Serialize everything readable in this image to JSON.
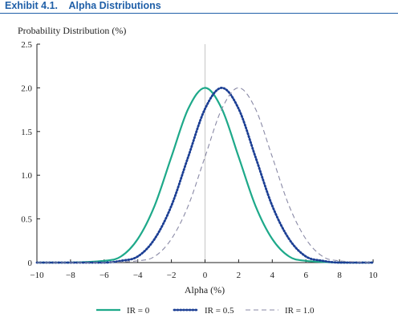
{
  "header": {
    "exhibit_label": "Exhibit 4.1.",
    "exhibit_title": "Alpha Distributions"
  },
  "colors": {
    "title": "#1f5fa8",
    "ir0": "#1ea98a",
    "ir05": "#1c3f94",
    "ir10": "#8a8aa6",
    "axis": "#222222"
  },
  "chart_data": {
    "type": "line",
    "xlabel": "Alpha (%)",
    "ylabel": "Probability Distribution (%)",
    "xlim": [
      -10,
      10
    ],
    "ylim": [
      0,
      2.5
    ],
    "x_ticks": [
      -10,
      -8,
      -6,
      -4,
      -2,
      0,
      2,
      4,
      6,
      8,
      10
    ],
    "x_tick_labels": [
      "−10",
      "−8",
      "−6",
      "−4",
      "−2",
      "0",
      "2",
      "4",
      "6",
      "8",
      "10"
    ],
    "y_ticks": [
      0,
      0.5,
      1.0,
      1.5,
      2.0,
      2.5
    ],
    "y_tick_labels": [
      "0",
      "0.5",
      "1.0",
      "1.5",
      "2.0",
      "2.5"
    ],
    "reference_line_x": 0,
    "grid": false,
    "legend_position": "bottom",
    "series": [
      {
        "name": "IR = 0",
        "style": "solid",
        "x": [
          -10,
          -8,
          -6,
          -5,
          -4,
          -3,
          -2,
          -1,
          0,
          1,
          2,
          3,
          4,
          5,
          6,
          8,
          10
        ],
        "y": [
          0,
          0.0,
          0.02,
          0.07,
          0.27,
          0.65,
          1.21,
          1.76,
          2.0,
          1.76,
          1.21,
          0.65,
          0.27,
          0.07,
          0.02,
          0.0,
          0
        ]
      },
      {
        "name": "IR = 0.5",
        "style": "dotted",
        "x": [
          -10,
          -8,
          -6,
          -5,
          -4,
          -3,
          -2,
          -1,
          0,
          1,
          2,
          3,
          4,
          5,
          6,
          7,
          8,
          10
        ],
        "y": [
          0,
          0.0,
          0.0,
          0.02,
          0.07,
          0.27,
          0.65,
          1.21,
          1.76,
          2.0,
          1.76,
          1.21,
          0.65,
          0.27,
          0.07,
          0.02,
          0.0,
          0
        ]
      },
      {
        "name": "IR = 1.0",
        "style": "dashed",
        "x": [
          -10,
          -8,
          -6,
          -4,
          -3,
          -2,
          -1,
          0,
          1,
          2,
          3,
          4,
          5,
          6,
          7,
          8,
          10
        ],
        "y": [
          0,
          0.0,
          0.0,
          0.02,
          0.07,
          0.27,
          0.65,
          1.21,
          1.76,
          2.0,
          1.76,
          1.21,
          0.65,
          0.27,
          0.07,
          0.02,
          0
        ]
      }
    ]
  }
}
